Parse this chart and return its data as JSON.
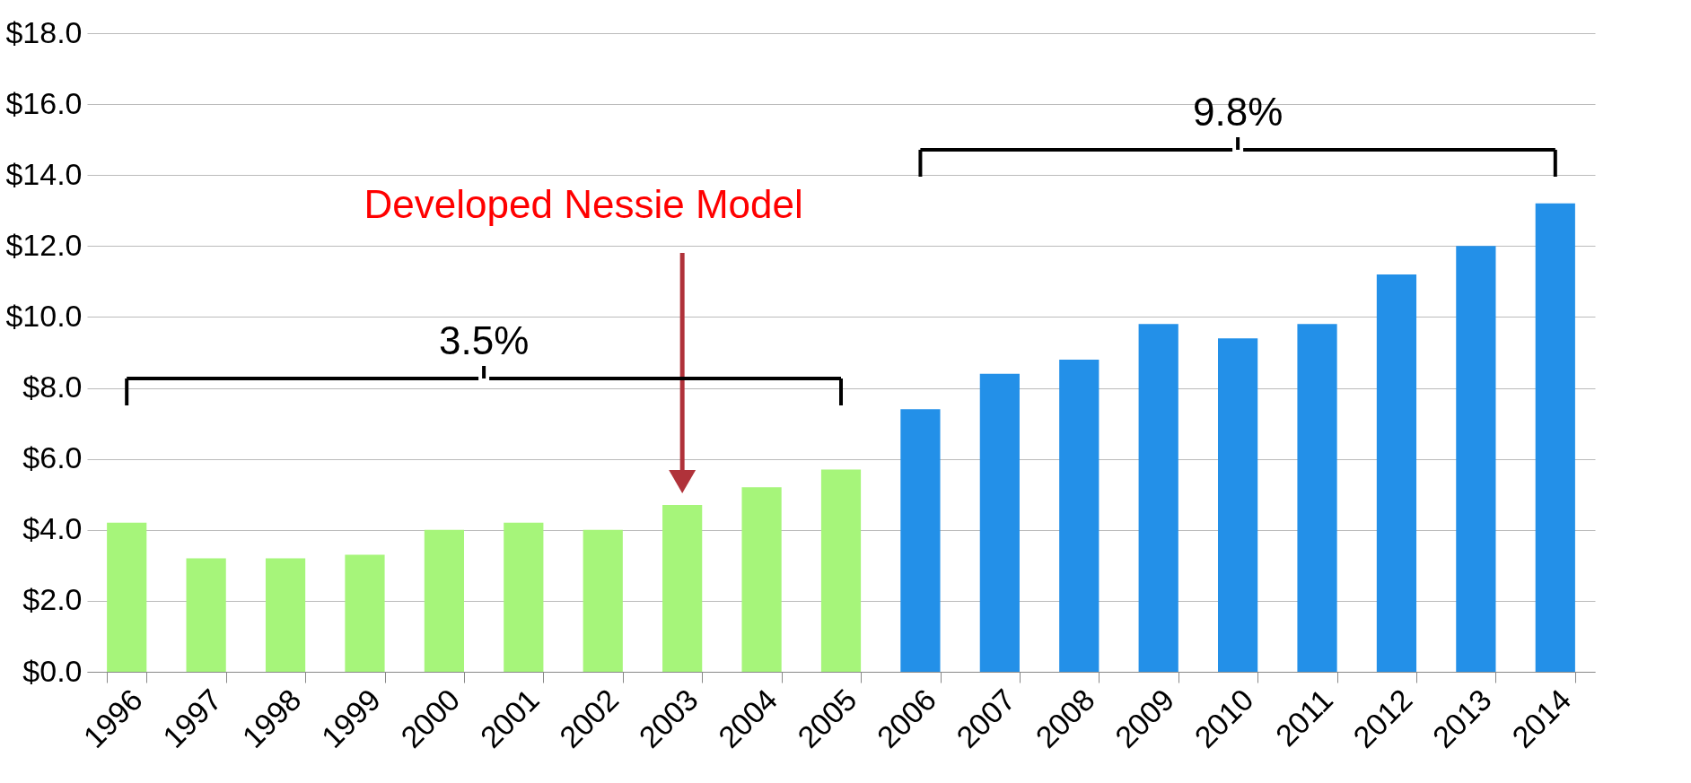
{
  "chart_data": {
    "type": "bar",
    "categories": [
      "1996",
      "1997",
      "1998",
      "1999",
      "2000",
      "2001",
      "2002",
      "2003",
      "2004",
      "2005",
      "2006",
      "2007",
      "2008",
      "2009",
      "2010",
      "2011",
      "2012",
      "2013",
      "2014"
    ],
    "values": [
      4.2,
      3.2,
      3.2,
      3.3,
      4.0,
      4.2,
      4.0,
      4.7,
      5.2,
      5.7,
      7.4,
      8.4,
      8.8,
      9.8,
      9.4,
      9.8,
      11.2,
      12.0,
      13.2
    ],
    "colors": [
      "#a6f57a",
      "#a6f57a",
      "#a6f57a",
      "#a6f57a",
      "#a6f57a",
      "#a6f57a",
      "#a6f57a",
      "#a6f57a",
      "#a6f57a",
      "#a6f57a",
      "#2390e8",
      "#2390e8",
      "#2390e8",
      "#2390e8",
      "#2390e8",
      "#2390e8",
      "#2390e8",
      "#2390e8",
      "#2390e8"
    ],
    "ylim": [
      0,
      18
    ],
    "yticks": [
      {
        "value": 0,
        "label": "$0.0"
      },
      {
        "value": 2,
        "label": "$2.0"
      },
      {
        "value": 4,
        "label": "$4.0"
      },
      {
        "value": 6,
        "label": "$6.0"
      },
      {
        "value": 8,
        "label": "$8.0"
      },
      {
        "value": 10,
        "label": "$10.0"
      },
      {
        "value": 12,
        "label": "$12.0"
      },
      {
        "value": 14,
        "label": "$14.0"
      },
      {
        "value": 16,
        "label": "$16.0"
      },
      {
        "value": 18,
        "label": "$18.0"
      }
    ],
    "grid": "y",
    "annotations": [
      "Developed Nessie Model",
      "3.5%",
      "9.8%"
    ]
  }
}
